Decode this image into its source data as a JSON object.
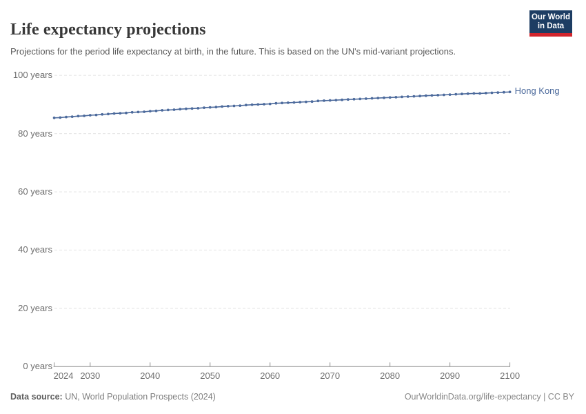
{
  "header": {
    "title": "Life expectancy projections",
    "subtitle": "Projections for the period life expectancy at birth, in the future. This is based on the UN's mid-variant projections.",
    "logo": {
      "line1": "Our World",
      "line2": "in Data"
    }
  },
  "chart_data": {
    "type": "line",
    "title": "Life expectancy projections",
    "xlabel": "",
    "ylabel": "",
    "xlim": [
      2024,
      2100
    ],
    "ylim": [
      0,
      100
    ],
    "grid": "horizontal-dashed",
    "legend_position": "end-of-line-label",
    "x_ticks": [
      2024,
      2030,
      2040,
      2050,
      2060,
      2070,
      2080,
      2090,
      2100
    ],
    "x_tick_labels": [
      "2024",
      "2030",
      "2040",
      "2050",
      "2060",
      "2070",
      "2080",
      "2090",
      "2100"
    ],
    "y_ticks": [
      0,
      20,
      40,
      60,
      80,
      100
    ],
    "y_tick_labels": [
      "0 years",
      "20 years",
      "40 years",
      "60 years",
      "80 years",
      "100 years"
    ],
    "x": [
      2024,
      2025,
      2026,
      2027,
      2028,
      2029,
      2030,
      2031,
      2032,
      2033,
      2034,
      2035,
      2036,
      2037,
      2038,
      2039,
      2040,
      2041,
      2042,
      2043,
      2044,
      2045,
      2046,
      2047,
      2048,
      2049,
      2050,
      2051,
      2052,
      2053,
      2054,
      2055,
      2056,
      2057,
      2058,
      2059,
      2060,
      2061,
      2062,
      2063,
      2064,
      2065,
      2066,
      2067,
      2068,
      2069,
      2070,
      2071,
      2072,
      2073,
      2074,
      2075,
      2076,
      2077,
      2078,
      2079,
      2080,
      2081,
      2082,
      2083,
      2084,
      2085,
      2086,
      2087,
      2088,
      2089,
      2090,
      2091,
      2092,
      2093,
      2094,
      2095,
      2096,
      2097,
      2098,
      2099,
      2100
    ],
    "series": [
      {
        "name": "Hong Kong",
        "color": "#4c6a9c",
        "values": [
          85.4,
          85.5,
          85.7,
          85.8,
          86.0,
          86.1,
          86.3,
          86.4,
          86.6,
          86.7,
          86.9,
          87.0,
          87.1,
          87.3,
          87.4,
          87.5,
          87.7,
          87.8,
          88.0,
          88.1,
          88.2,
          88.4,
          88.5,
          88.6,
          88.7,
          88.9,
          89.0,
          89.1,
          89.3,
          89.4,
          89.5,
          89.6,
          89.8,
          89.9,
          90.0,
          90.1,
          90.2,
          90.4,
          90.5,
          90.6,
          90.7,
          90.8,
          90.9,
          91.0,
          91.2,
          91.3,
          91.4,
          91.5,
          91.6,
          91.7,
          91.8,
          91.9,
          92.0,
          92.1,
          92.2,
          92.3,
          92.4,
          92.5,
          92.6,
          92.7,
          92.8,
          92.9,
          93.0,
          93.1,
          93.2,
          93.3,
          93.4,
          93.5,
          93.6,
          93.7,
          93.8,
          93.8,
          93.9,
          94.0,
          94.1,
          94.2,
          94.3
        ]
      }
    ]
  },
  "footer": {
    "source_label": "Data source:",
    "source_text": " UN, World Population Prospects (2024)",
    "rights": "OurWorldinData.org/life-expectancy | CC BY"
  },
  "colors": {
    "line": "#4c6a9c",
    "grid": "#e7e7e7",
    "axis": "#8f8f8f",
    "tick_text": "#6e6e6e",
    "logo_bg": "#1d3d63",
    "logo_bar": "#d1252c"
  }
}
